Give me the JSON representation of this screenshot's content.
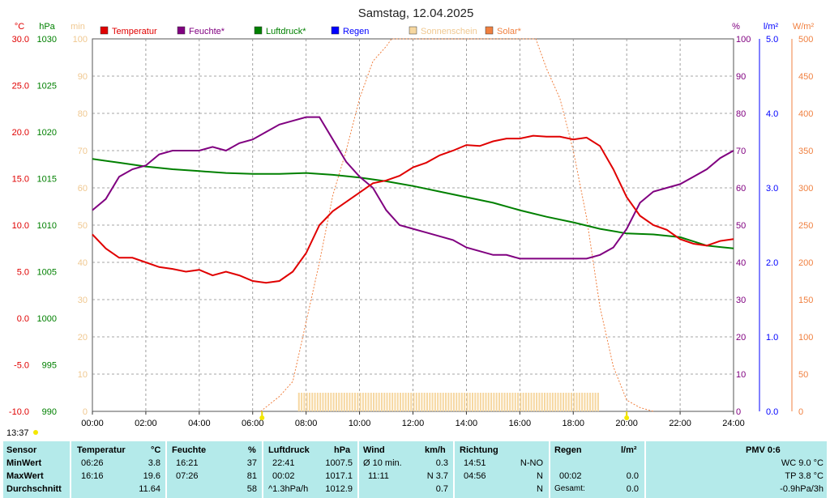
{
  "title": "Samstag, 12.04.2025",
  "clock": "13:37",
  "axis_units": {
    "temp": "°C",
    "pressure": "hPa",
    "min": "min",
    "humidity": "%",
    "rain": "l/m²",
    "solar": "W/m²"
  },
  "legend": [
    {
      "label": "Temperatur",
      "color": "#e00000"
    },
    {
      "label": "Feuchte*",
      "color": "#800080"
    },
    {
      "label": "Luftdruck*",
      "color": "#008000"
    },
    {
      "label": "Regen",
      "color": "#0000ff"
    },
    {
      "label": "Sonnenschein",
      "color": "#f6d7a0"
    },
    {
      "label": "Solar*",
      "color": "#f08040"
    }
  ],
  "colors": {
    "temp": "#e00000",
    "humidity": "#800080",
    "pressure": "#008000",
    "rain": "#0000ff",
    "sun": "#f6d7a0",
    "solar": "#f08040",
    "grid": "#888888",
    "table_bg": "#b4eaea"
  },
  "chart_data": {
    "type": "line",
    "title": "Samstag, 12.04.2025",
    "grid": true,
    "x_ticks": [
      "00:00",
      "02:00",
      "04:00",
      "06:00",
      "08:00",
      "10:00",
      "12:00",
      "14:00",
      "16:00",
      "18:00",
      "20:00",
      "22:00",
      "24:00"
    ],
    "axes": {
      "temp": {
        "unit": "°C",
        "range": [
          -10,
          30
        ],
        "ticks": [
          "30.0",
          "25.0",
          "20.0",
          "15.0",
          "10.0",
          "5.0",
          "0.0",
          "-5.0",
          "-10.0"
        ]
      },
      "pressure": {
        "unit": "hPa",
        "range": [
          990,
          1030
        ],
        "ticks": [
          "1030",
          "1025",
          "1020",
          "1015",
          "1010",
          "1005",
          "1000",
          "995",
          "990"
        ]
      },
      "minutes": {
        "unit": "min",
        "range": [
          0,
          100
        ],
        "ticks": [
          "100",
          "90",
          "80",
          "70",
          "60",
          "50",
          "40",
          "30",
          "20",
          "10",
          "0"
        ]
      },
      "humidity": {
        "unit": "%",
        "range": [
          0,
          100
        ],
        "ticks": [
          "100",
          "90",
          "80",
          "70",
          "60",
          "50",
          "40",
          "30",
          "20",
          "10",
          "0"
        ]
      },
      "rain": {
        "unit": "l/m²",
        "range": [
          0,
          5
        ],
        "ticks": [
          "5.0",
          "4.0",
          "3.0",
          "2.0",
          "1.0",
          "0.0"
        ]
      },
      "solar": {
        "unit": "W/m²",
        "range": [
          0,
          500
        ],
        "ticks": [
          "500",
          "450",
          "400",
          "350",
          "300",
          "250",
          "200",
          "150",
          "100",
          "50",
          "0"
        ]
      }
    },
    "series": [
      {
        "name": "Temperatur",
        "axis": "temp",
        "x": [
          0,
          0.5,
          1,
          1.5,
          2,
          2.5,
          3,
          3.5,
          4,
          4.5,
          5,
          5.5,
          6,
          6.5,
          7,
          7.5,
          8,
          8.5,
          9,
          9.5,
          10,
          10.5,
          11,
          11.5,
          12,
          12.5,
          13,
          13.5,
          14,
          14.5,
          15,
          15.5,
          16,
          16.5,
          17,
          17.5,
          18,
          18.5,
          19,
          19.5,
          20,
          20.5,
          21,
          21.5,
          22,
          22.5,
          23,
          23.5,
          24
        ],
        "y": [
          9.0,
          7.5,
          6.5,
          6.5,
          6.0,
          5.5,
          5.3,
          5.0,
          5.2,
          4.6,
          5.0,
          4.6,
          4.0,
          3.8,
          4.0,
          5.0,
          7.0,
          10.0,
          11.5,
          12.5,
          13.5,
          14.5,
          14.8,
          15.3,
          16.2,
          16.7,
          17.5,
          18.0,
          18.6,
          18.5,
          19.0,
          19.3,
          19.3,
          19.6,
          19.5,
          19.5,
          19.2,
          19.4,
          18.5,
          16.0,
          13.0,
          11.0,
          10.0,
          9.5,
          8.5,
          8.0,
          7.8,
          8.3,
          8.5
        ]
      },
      {
        "name": "Feuchte*",
        "axis": "humidity",
        "x": [
          0,
          0.5,
          1,
          1.5,
          2,
          2.5,
          3,
          3.5,
          4,
          4.5,
          5,
          5.5,
          6,
          6.5,
          7,
          7.5,
          8,
          8.5,
          9,
          9.5,
          10,
          10.5,
          11,
          11.5,
          12,
          12.5,
          13,
          13.5,
          14,
          14.5,
          15,
          15.5,
          16,
          16.5,
          17,
          17.5,
          18,
          18.5,
          19,
          19.5,
          20,
          20.5,
          21,
          21.5,
          22,
          22.5,
          23,
          23.5,
          24
        ],
        "y": [
          54,
          57,
          63,
          65,
          66,
          69,
          70,
          70,
          70,
          71,
          70,
          72,
          73,
          75,
          77,
          78,
          79,
          79,
          73,
          67,
          63,
          60,
          54,
          50,
          49,
          48,
          47,
          46,
          44,
          43,
          42,
          42,
          41,
          41,
          41,
          41,
          41,
          41,
          42,
          44,
          49,
          56,
          59,
          60,
          61,
          63,
          65,
          68,
          70
        ]
      },
      {
        "name": "Luftdruck*",
        "axis": "pressure",
        "x": [
          0,
          1,
          2,
          3,
          4,
          5,
          6,
          7,
          8,
          9,
          10,
          11,
          12,
          13,
          14,
          15,
          16,
          17,
          18,
          19,
          20,
          21,
          22,
          23,
          24
        ],
        "y": [
          1017.1,
          1016.7,
          1016.3,
          1016.0,
          1015.8,
          1015.6,
          1015.5,
          1015.5,
          1015.6,
          1015.4,
          1015.1,
          1014.7,
          1014.2,
          1013.6,
          1013.0,
          1012.4,
          1011.6,
          1010.9,
          1010.3,
          1009.6,
          1009.1,
          1009.0,
          1008.7,
          1007.8,
          1007.5
        ]
      },
      {
        "name": "Solar*",
        "axis": "solar",
        "x": [
          6.3,
          7,
          7.5,
          8,
          8.5,
          9,
          9.5,
          10,
          10.5,
          11,
          11.2,
          16.6,
          17,
          17.5,
          18,
          18.5,
          19,
          19.5,
          20,
          20.5,
          21
        ],
        "y": [
          0,
          20,
          40,
          120,
          200,
          290,
          350,
          420,
          470,
          490,
          500,
          500,
          460,
          420,
          350,
          260,
          140,
          60,
          15,
          5,
          0
        ]
      },
      {
        "name": "Sonnenschein",
        "axis": "minutes",
        "x_range": [
          7.7,
          19.0
        ],
        "value": 5
      }
    ]
  },
  "table": {
    "headers": {
      "sensor": "Sensor",
      "temp": "Temperatur",
      "temp_unit": "°C",
      "hum": "Feuchte",
      "hum_unit": "%",
      "press": "Luftdruck",
      "press_unit": "hPa",
      "wind": "Wind",
      "wind_unit": "km/h",
      "dir": "Richtung",
      "rain": "Regen",
      "rain_unit": "l/m²",
      "pmv": "PMV 0:6"
    },
    "min": {
      "label": "MinWert",
      "temp_time": "06:26",
      "temp": "3.8",
      "hum_time": "16:21",
      "hum": "37",
      "press_time": "22:41",
      "press": "1007.5",
      "wind_time": "Ø 10 min.",
      "wind": "0.3",
      "dir_time": "14:51",
      "dir": "N-NO",
      "rain_time": "",
      "rain": "",
      "pmv": "WC 9.0 °C"
    },
    "max": {
      "label": "MaxWert",
      "temp_time": "16:16",
      "temp": "19.6",
      "hum_time": "07:26",
      "hum": "81",
      "press_time": "00:02",
      "press": "1017.1",
      "wind_time": "11:11",
      "wind": "N 3.7",
      "dir_time": "04:56",
      "dir": "N",
      "rain_time": "00:02",
      "rain": "0.0",
      "pmv": "TP 3.8 °C"
    },
    "avg": {
      "label": "Durchschnitt",
      "temp": "11.64",
      "hum": "58",
      "press_time": "^1.3hPa/h",
      "press": "1012.9",
      "wind": "0.7",
      "dir": "N",
      "rain_time": "Gesamt:",
      "rain": "0.0",
      "pmv": "-0.9hPa/3h"
    }
  }
}
